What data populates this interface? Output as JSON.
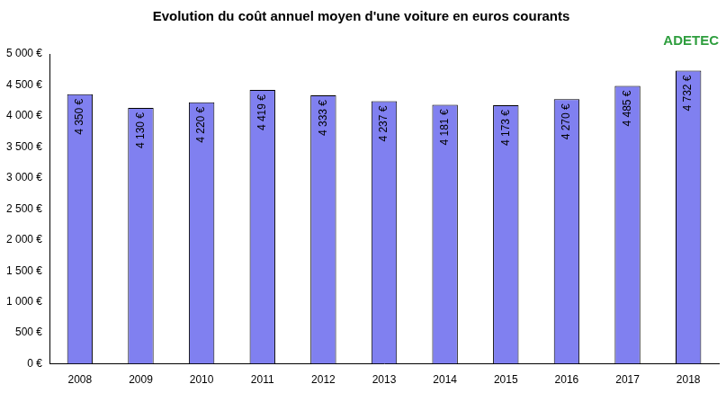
{
  "chart_data": {
    "type": "bar",
    "title": "Evolution du coût annuel moyen d'une voiture en euros courants",
    "annotations": [
      "ADETEC"
    ],
    "categories": [
      "2008",
      "2009",
      "2010",
      "2011",
      "2012",
      "2013",
      "2014",
      "2015",
      "2016",
      "2017",
      "2018"
    ],
    "values": [
      4350,
      4130,
      4220,
      4419,
      4333,
      4237,
      4181,
      4173,
      4270,
      4485,
      4732
    ],
    "value_labels": [
      "4 350 €",
      "4 130 €",
      "4 220 €",
      "4 419 €",
      "4 333 €",
      "4 237 €",
      "4 181 €",
      "4 173 €",
      "4 270 €",
      "4 485 €",
      "4 732 €"
    ],
    "data_labels": true,
    "color": "#8080f0",
    "ylim": [
      0,
      5000
    ],
    "yticks": [
      {
        "value": 0,
        "label": "0 €"
      },
      {
        "value": 500,
        "label": "500 €"
      },
      {
        "value": 1000,
        "label": "1 000 €"
      },
      {
        "value": 1500,
        "label": "1 500 €"
      },
      {
        "value": 2000,
        "label": "2 000 €"
      },
      {
        "value": 2500,
        "label": "2 500 €"
      },
      {
        "value": 3000,
        "label": "3 000 €"
      },
      {
        "value": 3500,
        "label": "3 500 €"
      },
      {
        "value": 4000,
        "label": "4 000 €"
      },
      {
        "value": 4500,
        "label": "4 500 €"
      },
      {
        "value": 5000,
        "label": "5 000 €"
      }
    ],
    "grid": false
  }
}
